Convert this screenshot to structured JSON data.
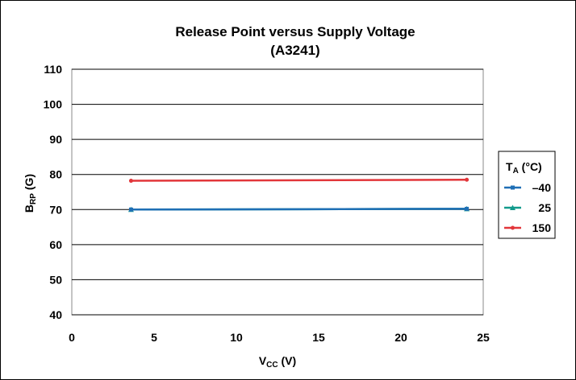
{
  "chart_data": {
    "type": "line",
    "title": "Release Point versus Supply Voltage",
    "subtitle": "(A3241)",
    "xlabel": {
      "main": "V",
      "sub": "CC",
      "rest": " (V)"
    },
    "ylabel": {
      "main": "B",
      "sub": "RP",
      "rest": " (G)"
    },
    "xlim": [
      0,
      25
    ],
    "ylim": [
      40,
      110
    ],
    "xticks": [
      0,
      5,
      10,
      15,
      20,
      25
    ],
    "yticks": [
      40,
      50,
      60,
      70,
      80,
      90,
      100,
      110
    ],
    "grid": "horizontal",
    "legend": {
      "placement": "right",
      "title": {
        "main": "T",
        "sub": "A",
        "rest": " (°C)"
      }
    },
    "series": [
      {
        "name": "–40",
        "color": "#1f6fb5",
        "marker": "square",
        "x": [
          3.6,
          24
        ],
        "y": [
          70,
          70.2
        ]
      },
      {
        "name": "25",
        "color": "#129a8c",
        "marker": "triangle",
        "x": [
          3.6,
          24
        ],
        "y": [
          70,
          70.2
        ]
      },
      {
        "name": "150",
        "color": "#e2363a",
        "marker": "circle",
        "x": [
          3.6,
          24
        ],
        "y": [
          78.2,
          78.5
        ]
      }
    ]
  }
}
